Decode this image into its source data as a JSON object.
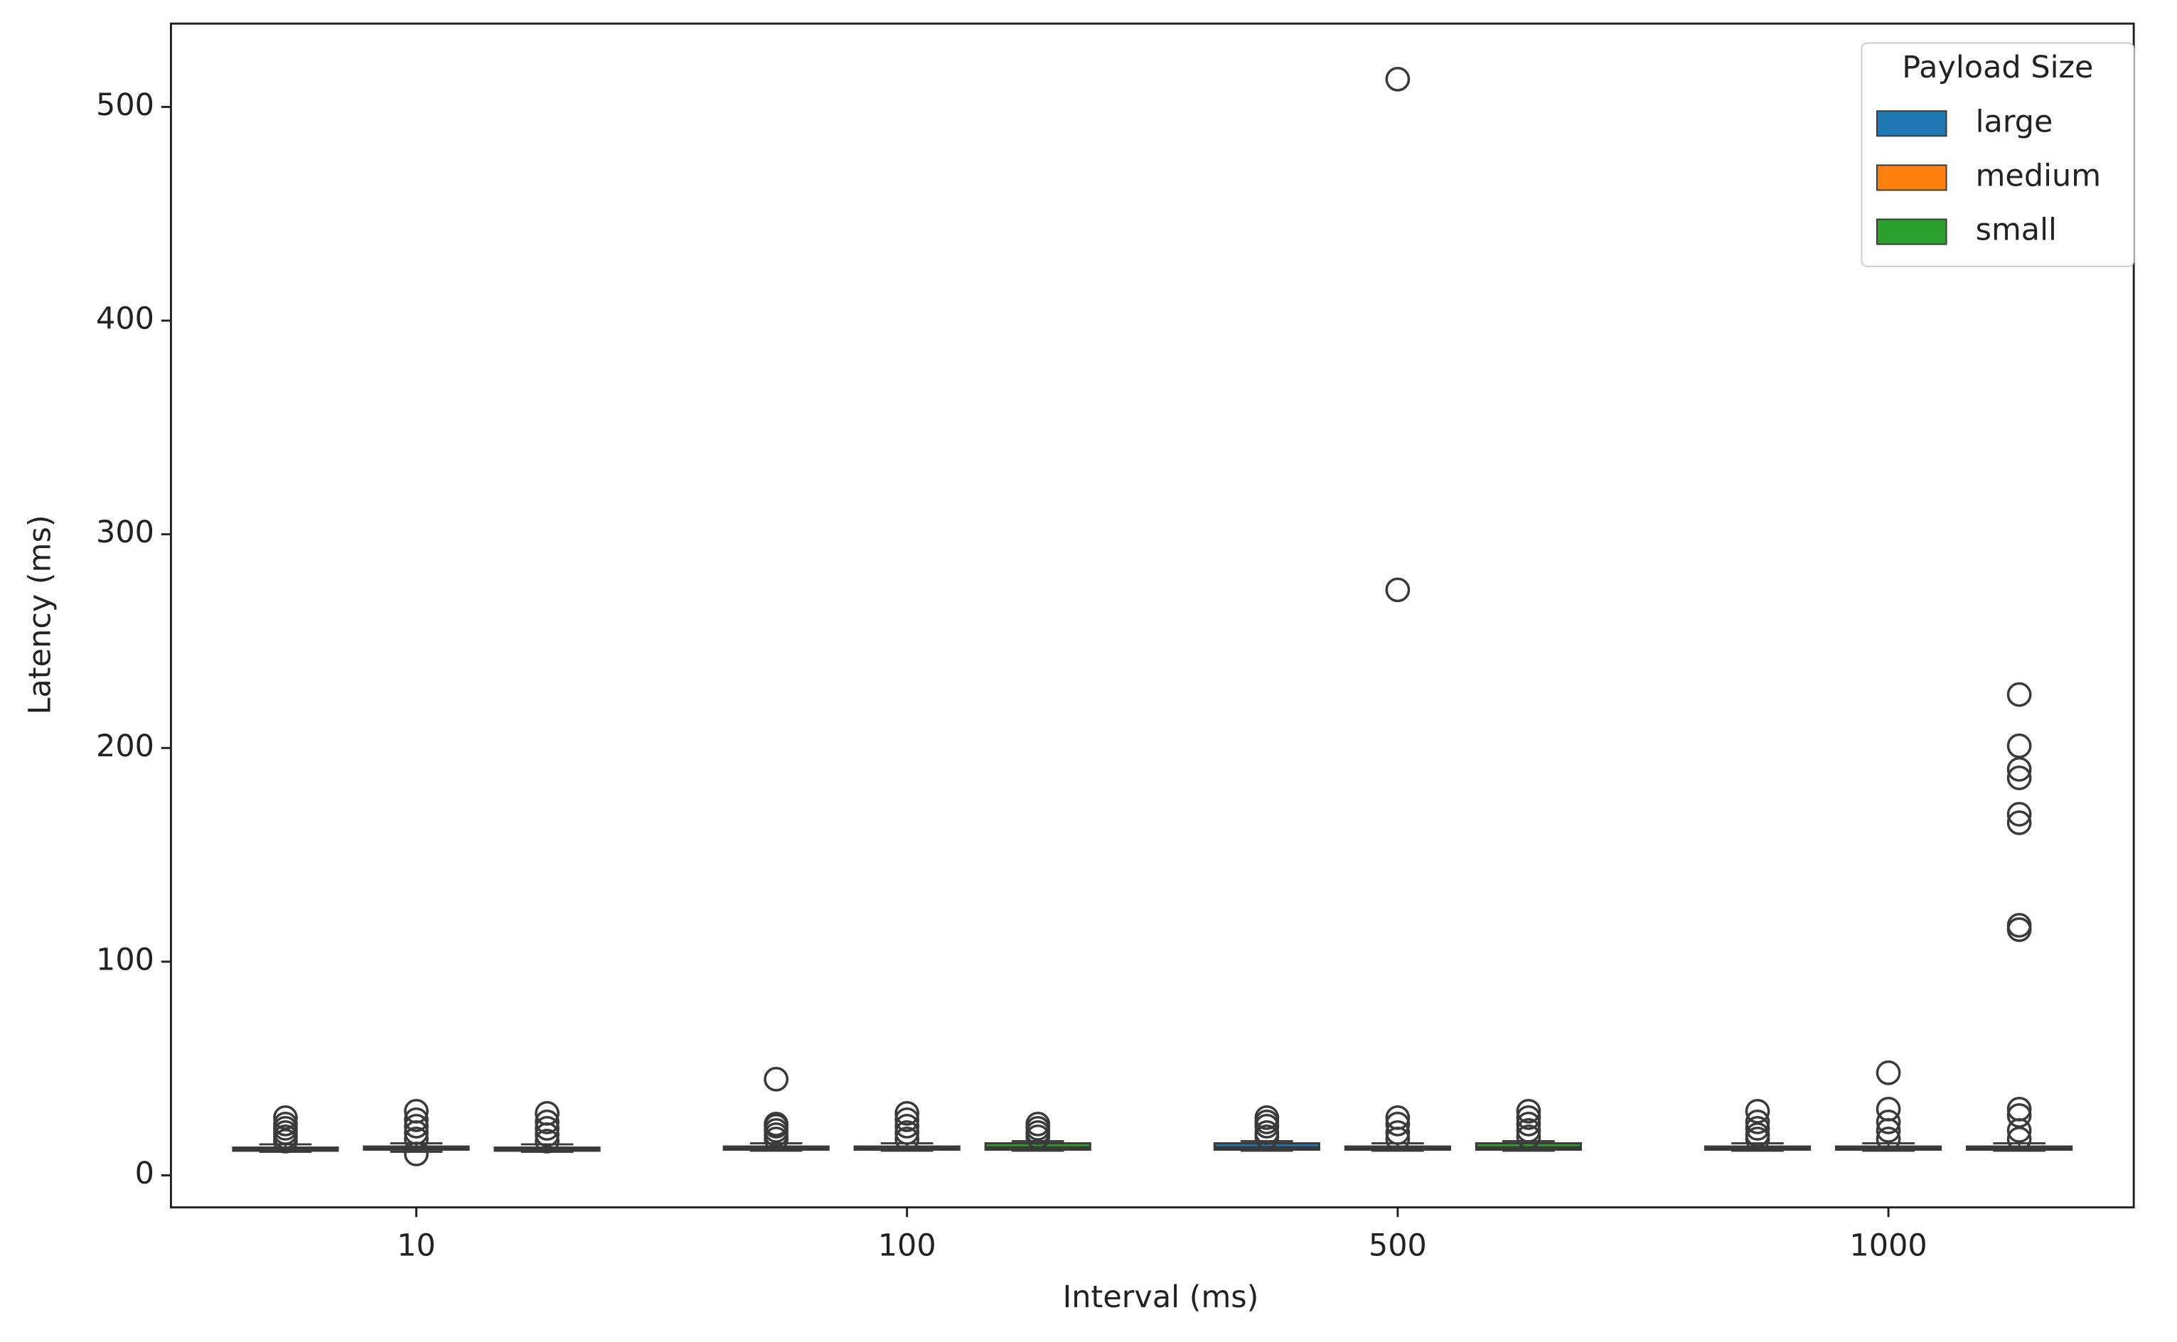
{
  "chart_data": {
    "type": "box",
    "xlabel": "Interval (ms)",
    "ylabel": "Latency (ms)",
    "categories": [
      "10",
      "100",
      "500",
      "1000"
    ],
    "ylim": [
      -15,
      539
    ],
    "yticks": [
      0,
      100,
      200,
      300,
      400,
      500
    ],
    "legend_title": "Payload Size",
    "legend": "upper right",
    "series": [
      {
        "name": "large",
        "color": "#1f77b4",
        "boxes": [
          {
            "whislo": 11,
            "q1": 11.5,
            "median": 12,
            "q3": 13,
            "whishi": 14.5,
            "fliers": [
              16,
              18,
              20,
              22,
              24,
              27
            ]
          },
          {
            "whislo": 11.5,
            "q1": 12,
            "median": 12.5,
            "q3": 13.5,
            "whishi": 15,
            "fliers": [
              17,
              19,
              21,
              23,
              24,
              45
            ]
          },
          {
            "whislo": 11.5,
            "q1": 12,
            "median": 13,
            "q3": 15,
            "whishi": 16,
            "fliers": [
              18,
              20,
              23,
              25,
              27
            ]
          },
          {
            "whislo": 11.5,
            "q1": 12,
            "median": 12.5,
            "q3": 13.5,
            "whishi": 15,
            "fliers": [
              17,
              19,
              22,
              25,
              30
            ]
          }
        ]
      },
      {
        "name": "medium",
        "color": "#ff7f0e",
        "boxes": [
          {
            "whislo": 11,
            "q1": 12,
            "median": 12.5,
            "q3": 13.5,
            "whishi": 15,
            "fliers": [
              10,
              17,
              20,
              23,
              26,
              30
            ]
          },
          {
            "whislo": 11.5,
            "q1": 12,
            "median": 12.5,
            "q3": 13.5,
            "whishi": 15,
            "fliers": [
              17,
              20,
              23,
              26,
              29
            ]
          },
          {
            "whislo": 11.5,
            "q1": 12,
            "median": 12.5,
            "q3": 13.5,
            "whishi": 15,
            "fliers": [
              17,
              20,
              24,
              27,
              274,
              513
            ]
          },
          {
            "whislo": 11.5,
            "q1": 12,
            "median": 12.5,
            "q3": 13.5,
            "whishi": 15,
            "fliers": [
              17,
              21,
              25,
              31,
              48
            ]
          }
        ]
      },
      {
        "name": "small",
        "color": "#2ca02c",
        "boxes": [
          {
            "whislo": 11,
            "q1": 11.5,
            "median": 12,
            "q3": 13,
            "whishi": 14.5,
            "fliers": [
              16,
              19,
              22,
              25,
              29
            ]
          },
          {
            "whislo": 11.5,
            "q1": 12,
            "median": 13,
            "q3": 15,
            "whishi": 16,
            "fliers": [
              18,
              20,
              22,
              24
            ]
          },
          {
            "whislo": 11.5,
            "q1": 12,
            "median": 13,
            "q3": 15,
            "whishi": 16,
            "fliers": [
              18,
              21,
              24,
              27,
              30
            ]
          },
          {
            "whislo": 11.5,
            "q1": 12,
            "median": 12.5,
            "q3": 13.5,
            "whishi": 15,
            "fliers": [
              17,
              21,
              28,
              31,
              115,
              117,
              165,
              169,
              186,
              190,
              201,
              225
            ]
          }
        ]
      }
    ]
  }
}
